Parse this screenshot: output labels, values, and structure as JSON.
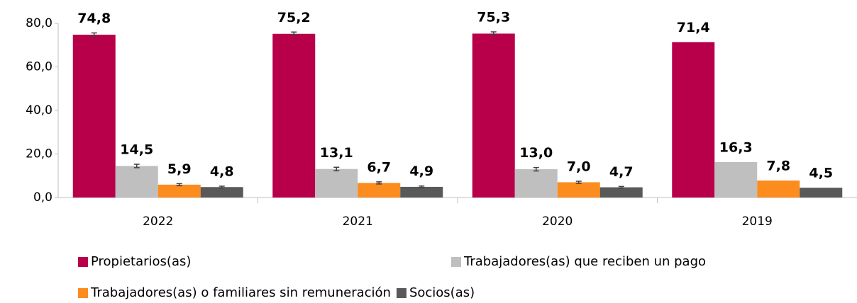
{
  "chart_data": {
    "type": "bar",
    "categories": [
      "2022",
      "2021",
      "2020",
      "2019"
    ],
    "series": [
      {
        "name": "Propietarios(as)",
        "color": "#b8004a",
        "values": [
          74.8,
          75.2,
          75.3,
          71.4
        ],
        "value_labels": [
          "74,8",
          "75,2",
          "75,3",
          "71,4"
        ],
        "errors": [
          0.8,
          0.8,
          0.8,
          null
        ]
      },
      {
        "name": "Trabajadores(as) que reciben un pago",
        "color": "#bfbfbf",
        "values": [
          14.5,
          13.1,
          13.0,
          16.3
        ],
        "value_labels": [
          "14,5",
          "13,1",
          "13,0",
          "16,3"
        ],
        "errors": [
          0.8,
          0.8,
          0.8,
          null
        ]
      },
      {
        "name": "Trabajadores(as) o familiares sin remuneración",
        "color": "#fb8c1d",
        "values": [
          5.9,
          6.7,
          7.0,
          7.8
        ],
        "value_labels": [
          "5,9",
          "6,7",
          "7,0",
          "7,8"
        ],
        "errors": [
          0.5,
          0.5,
          0.5,
          null
        ]
      },
      {
        "name": "Socios(as)",
        "color": "#595959",
        "values": [
          4.8,
          4.9,
          4.7,
          4.5
        ],
        "value_labels": [
          "4,8",
          "4,9",
          "4,7",
          "4,5"
        ],
        "errors": [
          0.4,
          0.4,
          0.4,
          null
        ]
      }
    ],
    "ylim": [
      0,
      80
    ],
    "yticks": [
      {
        "value": 0,
        "label": "0,0"
      },
      {
        "value": 20,
        "label": "20,0"
      },
      {
        "value": 40,
        "label": "40,0"
      },
      {
        "value": 60,
        "label": "60,0"
      },
      {
        "value": 80,
        "label": "80,0"
      }
    ],
    "grid": false,
    "error_bars": true
  }
}
